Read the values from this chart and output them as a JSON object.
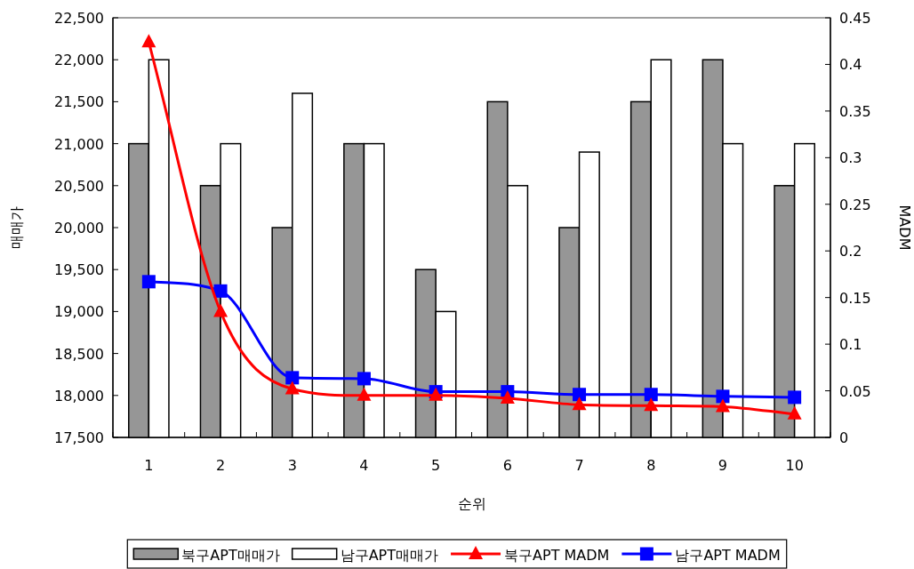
{
  "chart_data": {
    "type": "bar",
    "xlabel": "순위",
    "ylabel": "매매가",
    "y2label": "MADM",
    "categories": [
      "1",
      "2",
      "3",
      "4",
      "5",
      "6",
      "7",
      "8",
      "9",
      "10"
    ],
    "series": [
      {
        "name": "북구APT매매가",
        "color": "#969696",
        "values": [
          21000,
          20500,
          20000,
          21000,
          19500,
          21500,
          20000,
          21500,
          22000,
          20500
        ]
      },
      {
        "name": "남구APT매매가",
        "color": "#ffffff",
        "values": [
          22000,
          21000,
          21600,
          21000,
          19000,
          20500,
          20900,
          22000,
          21000,
          21000
        ]
      },
      {
        "name": "북구APT MADM",
        "type": "line",
        "axis": "y2",
        "marker": "triangle",
        "color": "#ff0000",
        "values": [
          0.424,
          0.135,
          0.052,
          0.045,
          0.045,
          0.042,
          0.035,
          0.034,
          0.033,
          0.025
        ]
      },
      {
        "name": "남구APT MADM",
        "type": "line",
        "axis": "y2",
        "marker": "square",
        "color": "#0000ff",
        "values": [
          0.167,
          0.157,
          0.064,
          0.063,
          0.049,
          0.049,
          0.046,
          0.046,
          0.044,
          0.043
        ]
      }
    ],
    "ylim": [
      17500,
      22500
    ],
    "yticks": [
      {
        "value": 17500,
        "label": "17,500"
      },
      {
        "value": 18000,
        "label": "18,000"
      },
      {
        "value": 18500,
        "label": "18,500"
      },
      {
        "value": 19000,
        "label": "19,000"
      },
      {
        "value": 19500,
        "label": "19,500"
      },
      {
        "value": 20000,
        "label": "20,000"
      },
      {
        "value": 20500,
        "label": "20,500"
      },
      {
        "value": 21000,
        "label": "21,000"
      },
      {
        "value": 21500,
        "label": "21,500"
      },
      {
        "value": 22000,
        "label": "22,000"
      },
      {
        "value": 22500,
        "label": "22,500"
      }
    ],
    "y2lim": [
      0,
      0.45
    ],
    "y2ticks": [
      0,
      0.05,
      0.1,
      0.15,
      0.2,
      0.25,
      0.3,
      0.35,
      0.4,
      0.45
    ],
    "legend": "bottom"
  }
}
